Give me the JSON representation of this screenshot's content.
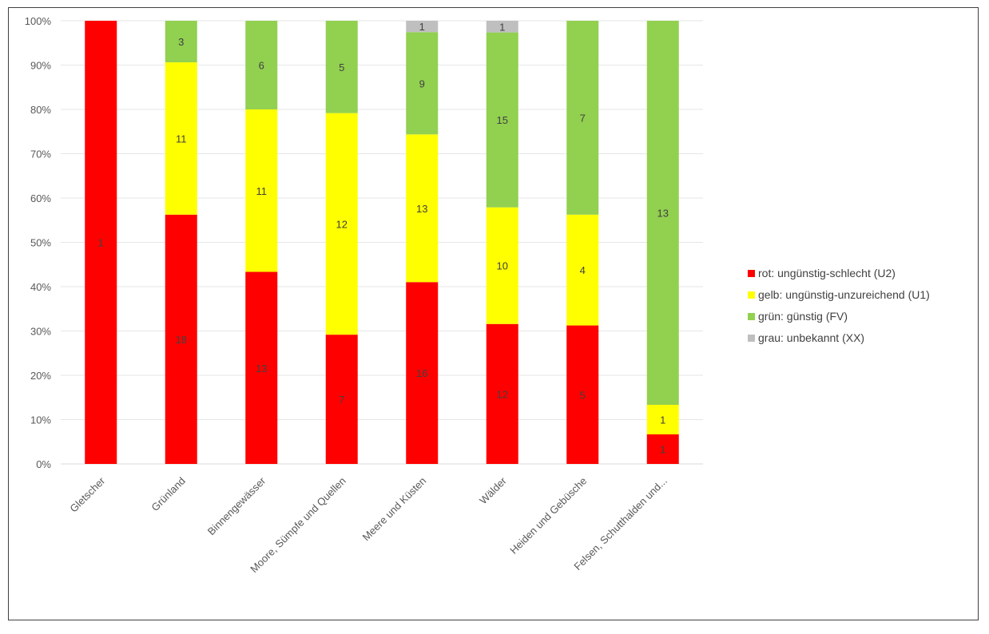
{
  "chart_data": {
    "type": "bar",
    "stacked": "percent",
    "title": "",
    "xlabel": "",
    "ylabel": "",
    "ylim": [
      0,
      100
    ],
    "yticks": [
      "0%",
      "10%",
      "20%",
      "30%",
      "40%",
      "50%",
      "60%",
      "70%",
      "80%",
      "90%",
      "100%"
    ],
    "grid": true,
    "legend_position": "right",
    "categories": [
      "Gletscher",
      "Grünland",
      "Binnengewässer",
      "Moore, Sümpfe und Quellen",
      "Meere und Küsten",
      "Wälder",
      "Heiden und Gebüsche",
      "Felsen, Schutthalden und..."
    ],
    "series": [
      {
        "name": "rot: ungünstig-schlecht (U2)",
        "color": "#ff0000",
        "values": [
          1,
          18,
          13,
          7,
          16,
          12,
          5,
          1
        ]
      },
      {
        "name": "gelb: ungünstig-unzureichend (U1)",
        "color": "#ffff00",
        "values": [
          0,
          11,
          11,
          12,
          13,
          10,
          4,
          1
        ]
      },
      {
        "name": "grün: günstig (FV)",
        "color": "#92d050",
        "values": [
          0,
          3,
          6,
          5,
          9,
          15,
          7,
          13
        ]
      },
      {
        "name": "grau: unbekannt (XX)",
        "color": "#bfbfbf",
        "values": [
          0,
          0,
          0,
          0,
          1,
          1,
          0,
          0
        ]
      }
    ]
  }
}
